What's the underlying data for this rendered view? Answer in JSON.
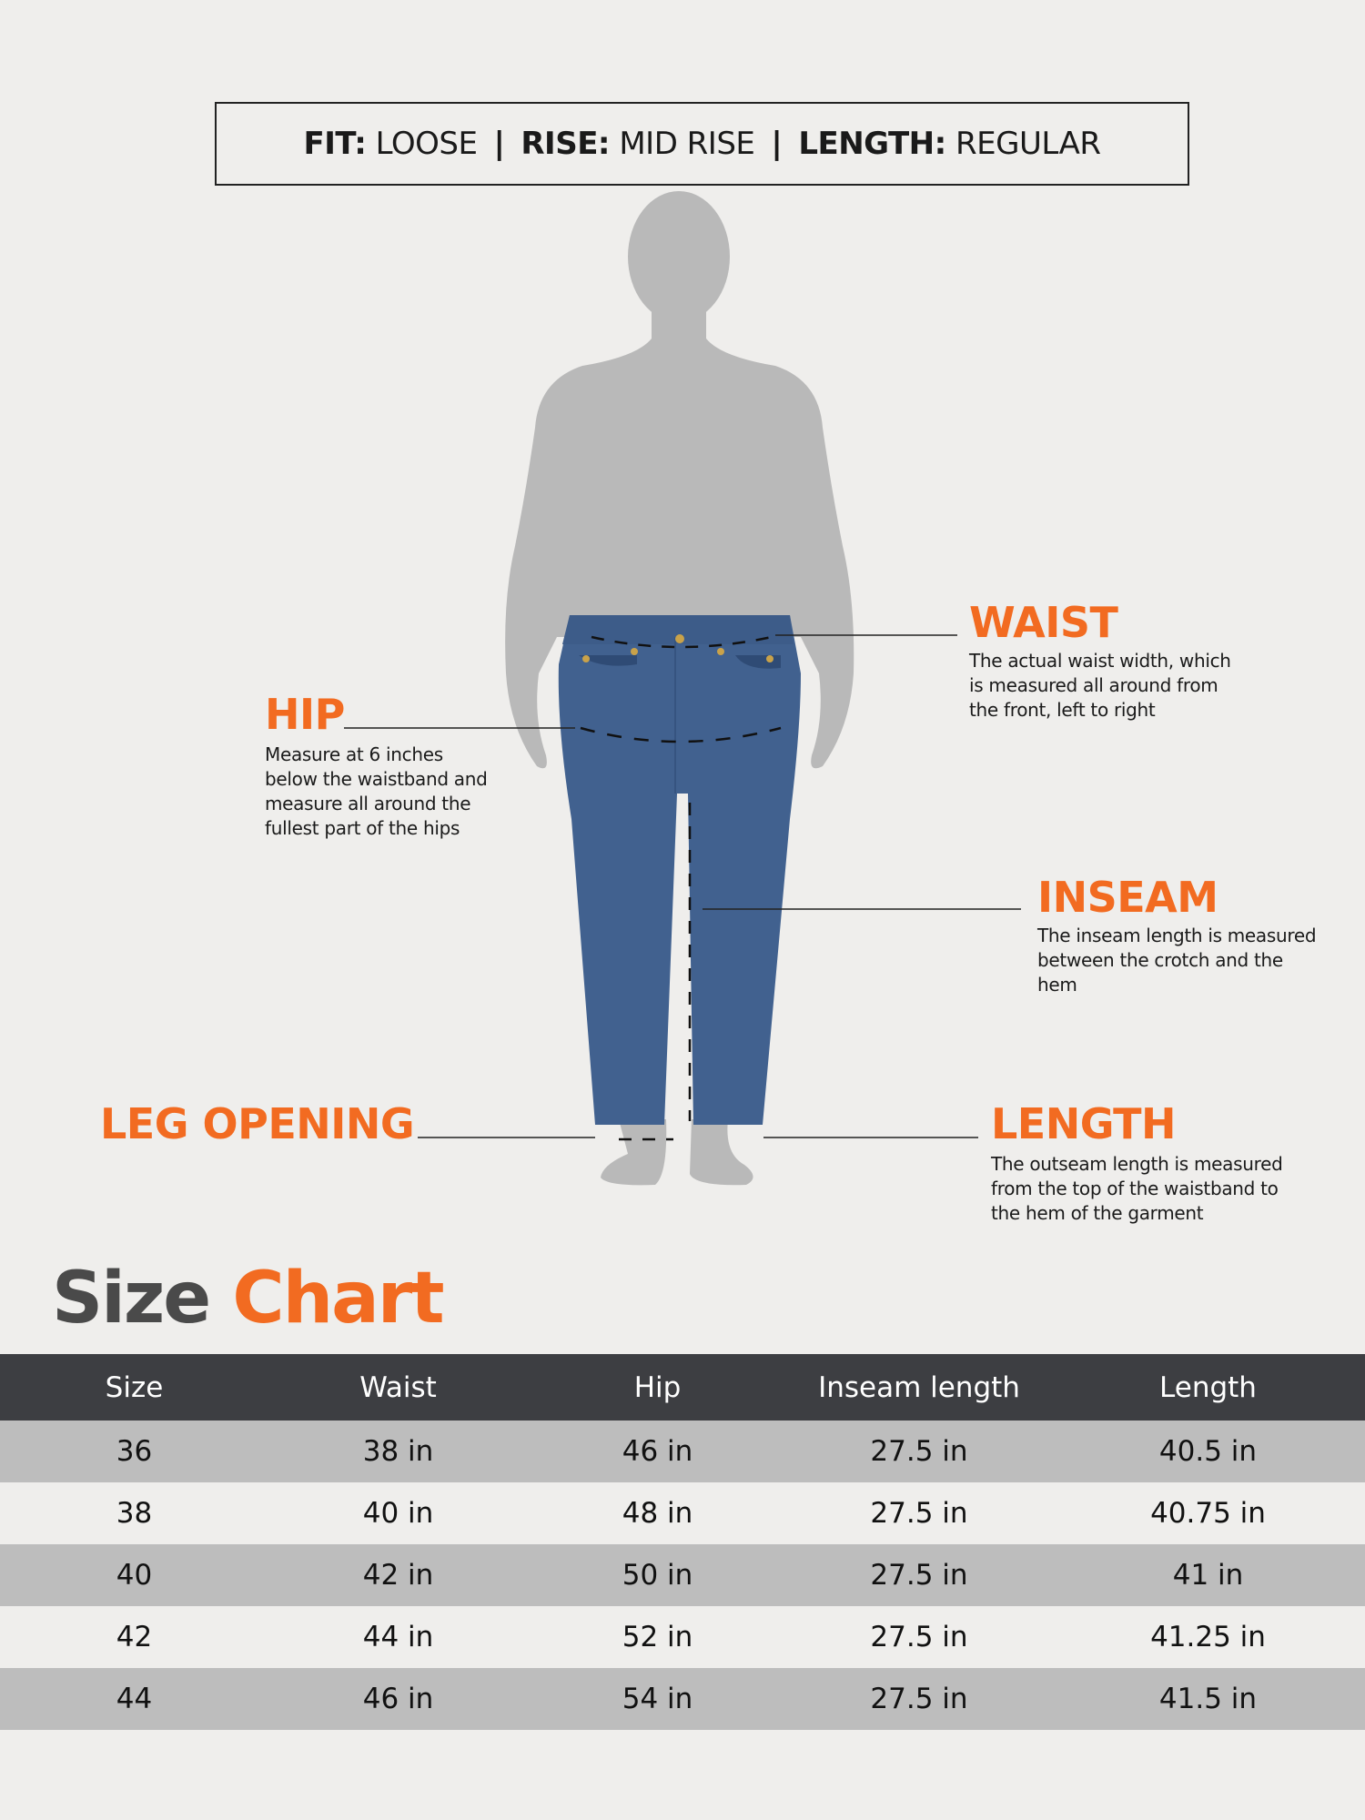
{
  "header": {
    "fit_label": "FIT:",
    "fit_value": "LOOSE",
    "rise_label": "RISE:",
    "rise_value": "MID RISE",
    "length_label": "LENGTH:",
    "length_value": "REGULAR",
    "separator": "|"
  },
  "measurements": {
    "waist": {
      "title": "WAIST",
      "lines": [
        "The actual waist width, which",
        "is measured all around from",
        "the front, left to right"
      ]
    },
    "hip": {
      "title": "HIP",
      "lines": [
        "Measure at 6 inches",
        "below the waistband and",
        "measure all around the",
        "fullest part of the hips"
      ]
    },
    "inseam": {
      "title": "INSEAM",
      "lines": [
        "The inseam length is measured",
        "between the crotch and the",
        "hem"
      ]
    },
    "leg_opening": {
      "title": "LEG OPENING"
    },
    "length": {
      "title": "LENGTH",
      "lines": [
        "The outseam length is measured",
        "from the top of the waistband to",
        "the hem of the garment"
      ]
    }
  },
  "colors": {
    "accent": "#f26b21",
    "denim": "#41618f",
    "silhouette": "#b9b9b9",
    "header_bg": "#3d3e42",
    "row_alt": "#bdbdbd",
    "background": "#efeeec"
  },
  "size_chart": {
    "title_part1": "Size",
    "title_part2": "Chart",
    "columns": [
      "Size",
      "Waist",
      "Hip",
      "Inseam length",
      "Length"
    ],
    "rows": [
      [
        "36",
        "38 in",
        "46 in",
        "27.5 in",
        "40.5 in"
      ],
      [
        "38",
        "40 in",
        "48 in",
        "27.5 in",
        "40.75 in"
      ],
      [
        "40",
        "42 in",
        "50 in",
        "27.5 in",
        "41 in"
      ],
      [
        "42",
        "44 in",
        "52 in",
        "27.5 in",
        "41.25 in"
      ],
      [
        "44",
        "46 in",
        "54 in",
        "27.5 in",
        "41.5 in"
      ]
    ]
  }
}
